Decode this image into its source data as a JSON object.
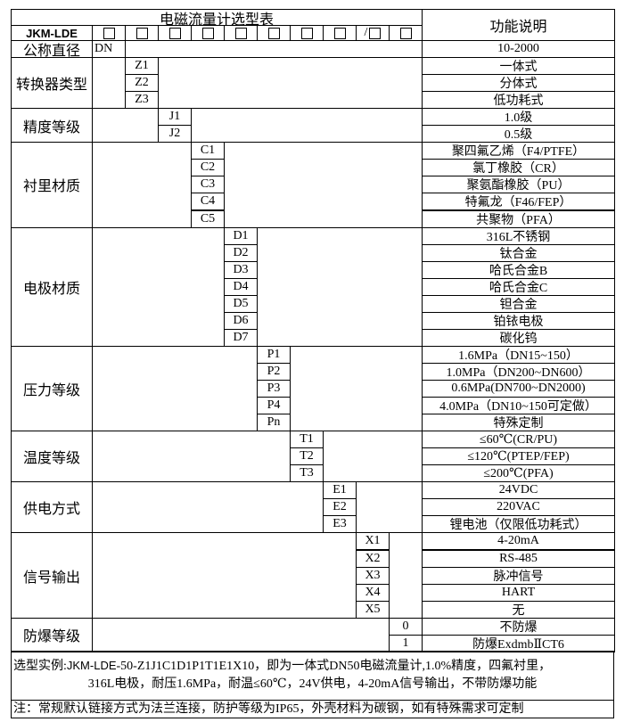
{
  "title": "电磁流量计选型表",
  "function_header": "功能说明",
  "model_prefix": "JKM-LDE",
  "slot_separator": "/",
  "categories": [
    {
      "label": "公称直径",
      "codes": [
        "DN"
      ],
      "functions": [
        "10-2000"
      ]
    },
    {
      "label": "转换器类型",
      "codes": [
        "Z1",
        "Z2",
        "Z3"
      ],
      "functions": [
        "一体式",
        "分体式",
        "低功耗式"
      ]
    },
    {
      "label": "精度等级",
      "codes": [
        "J1",
        "J2"
      ],
      "functions": [
        "1.0级",
        "0.5级"
      ]
    },
    {
      "label": "衬里材质",
      "codes": [
        "C1",
        "C2",
        "C3",
        "C4",
        "C5"
      ],
      "functions": [
        "聚四氟乙烯（F4/PTFE）",
        "氯丁橡胶（CR）",
        "聚氨酯橡胶（PU）",
        "特氟龙（F46/FEP）",
        "共聚物（PFA）"
      ]
    },
    {
      "label": "电极材质",
      "codes": [
        "D1",
        "D2",
        "D3",
        "D4",
        "D5",
        "D6",
        "D7"
      ],
      "functions": [
        "316L不锈钢",
        "钛合金",
        "哈氏合金B",
        "哈氏合金C",
        "钽合金",
        "铂铱电极",
        "碳化钨"
      ]
    },
    {
      "label": "压力等级",
      "codes": [
        "P1",
        "P2",
        "P3",
        "P4",
        "Pn"
      ],
      "functions": [
        "1.6MPa（DN15~150）",
        "1.0MPa（DN200~DN600）",
        "0.6MPa(DN700~DN2000)",
        "4.0MPa（DN10~150可定做）",
        "特殊定制"
      ]
    },
    {
      "label": "温度等级",
      "codes": [
        "T1",
        "T2",
        "T3"
      ],
      "functions": [
        "≤60℃(CR/PU)",
        "≤120℃(PTEP/FEP)",
        "≤200℃(PFA)"
      ]
    },
    {
      "label": "供电方式",
      "codes": [
        "E1",
        "E2",
        "E3"
      ],
      "functions": [
        "24VDC",
        "220VAC",
        "锂电池（仅限低功耗式）"
      ]
    },
    {
      "label": "信号输出",
      "codes": [
        "X1",
        "X2",
        "X3",
        "X4",
        "X5"
      ],
      "functions": [
        "4-20mA",
        "RS-485",
        "脉冲信号",
        "HART",
        "无"
      ]
    },
    {
      "label": "防爆等级",
      "codes": [
        "0",
        "1"
      ],
      "functions": [
        "不防爆",
        "防爆ExdmbⅡCT6"
      ]
    }
  ],
  "example": {
    "label": "选型实例:",
    "model": "JKM-LDE",
    "line1_rest": "-50-Z1J1C1D1P1T1E1X10，即为一体式DN50电磁流量计,1.0%精度，四氟衬里，",
    "line2": "316L电极，耐压1.6MPa，耐温≤60℃，24V供电，4-20mA信号输出，不带防爆功能"
  },
  "note": "注：常规默认链接方式为法兰连接，防护等级为IP65，外壳材料为碳钢，如有特殊需求可定制"
}
